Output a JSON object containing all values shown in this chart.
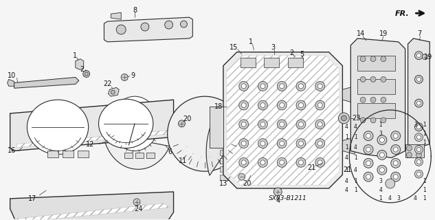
{
  "background_color": "#f5f5f5",
  "border_color": "#000000",
  "diagram_id": "SX03-B1211",
  "direction_label": "FR.",
  "fig_width": 6.33,
  "fig_height": 3.2,
  "dpi": 100,
  "line_color": "#2a2a2a",
  "text_color": "#111111",
  "font_size_label": 7,
  "font_size_diagram_id": 6.5
}
